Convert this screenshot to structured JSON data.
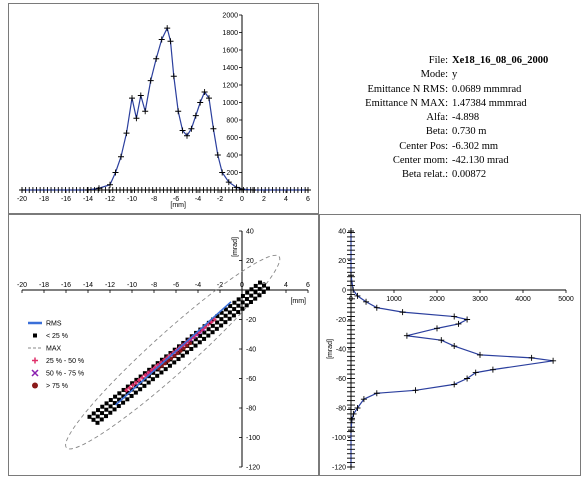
{
  "info": [
    {
      "key": "File:",
      "value": "Xe18_16_08_06_2000"
    },
    {
      "key": "Mode:",
      "value": "y"
    },
    {
      "key": "Emittance N RMS:",
      "value": "0.0689 mmmrad"
    },
    {
      "key": "Emittance N MAX:",
      "value": "1.47384 mmmrad"
    },
    {
      "key": "Alfa:",
      "value": "-4.898"
    },
    {
      "key": "Beta:",
      "value": "0.730 m"
    },
    {
      "key": "Center Pos:",
      "value": "-6.302 mm"
    },
    {
      "key": "Center mom:",
      "value": "-42.130 mrad"
    },
    {
      "key": "Beta relat.:",
      "value": "0.00872"
    }
  ],
  "legend": [
    {
      "label": "RMS",
      "marker": "line",
      "color": "#3a6fd8"
    },
    {
      "label": "< 25 %",
      "marker": "square",
      "color": "#000000"
    },
    {
      "label": "MAX",
      "marker": "dash",
      "color": "#888888"
    },
    {
      "label": "25 % - 50 %",
      "marker": "plus",
      "color": "#e0306a"
    },
    {
      "label": "50 % - 75 %",
      "marker": "x",
      "color": "#8a20b0"
    },
    {
      "label": "> 75 %",
      "marker": "dot",
      "color": "#8b1a1a"
    }
  ],
  "chart_data": [
    {
      "type": "line",
      "xlabel": "[mm]",
      "xlim": [
        -20,
        6
      ],
      "ylim": [
        0,
        2000
      ],
      "x_ticks": [
        -20,
        -18,
        -16,
        -14,
        -12,
        -10,
        -8,
        -6,
        -4,
        -2,
        0,
        2,
        4,
        6
      ],
      "y_ticks": [
        200,
        400,
        600,
        800,
        1000,
        1200,
        1400,
        1600,
        1800,
        2000
      ],
      "series": [
        {
          "color": "#2b3f9e",
          "points": [
            [
              -20,
              0
            ],
            [
              -14,
              0
            ],
            [
              -13,
              20
            ],
            [
              -12,
              60
            ],
            [
              -11.5,
              200
            ],
            [
              -11,
              380
            ],
            [
              -10.5,
              650
            ],
            [
              -10,
              1050
            ],
            [
              -9.6,
              820
            ],
            [
              -9.2,
              1080
            ],
            [
              -8.8,
              900
            ],
            [
              -8.3,
              1250
            ],
            [
              -7.8,
              1500
            ],
            [
              -7.3,
              1720
            ],
            [
              -6.8,
              1850
            ],
            [
              -6.5,
              1700
            ],
            [
              -6.2,
              1300
            ],
            [
              -5.8,
              900
            ],
            [
              -5.4,
              680
            ],
            [
              -5,
              620
            ],
            [
              -4.6,
              700
            ],
            [
              -4.2,
              850
            ],
            [
              -3.8,
              1000
            ],
            [
              -3.4,
              1120
            ],
            [
              -3,
              1050
            ],
            [
              -2.6,
              700
            ],
            [
              -2.2,
              400
            ],
            [
              -1.8,
              200
            ],
            [
              -1.2,
              90
            ],
            [
              -0.5,
              30
            ],
            [
              0,
              10
            ],
            [
              1,
              0
            ],
            [
              6,
              0
            ]
          ]
        }
      ]
    },
    {
      "type": "scatter",
      "xlabel": "[mm]",
      "ylabel": "[mrad]",
      "xlim": [
        -20,
        6
      ],
      "ylim": [
        -120,
        40
      ],
      "x_ticks": [
        -20,
        -18,
        -16,
        -14,
        -12,
        -10,
        -8,
        -6,
        -4,
        -2,
        0,
        2,
        4,
        6
      ],
      "y_ticks": [
        40,
        20,
        0,
        -20,
        -40,
        -60,
        -80,
        -100,
        -120
      ],
      "ellipse_max": {
        "cx": -6.3,
        "cy": -42.1,
        "alpha": -4.898,
        "beta": 0.73,
        "emit_norm": 1.47384
      },
      "ellipse_rms": {
        "cx": -6.3,
        "cy": -42.1,
        "alpha": -4.898,
        "beta": 0.73,
        "emit_norm": 0.0689
      },
      "band": {
        "x_start": -13.5,
        "x_end": 2,
        "y_at_start": -88,
        "y_at_end": 3
      }
    },
    {
      "type": "line",
      "ylabel": "[mrad]",
      "xlim": [
        0,
        5000
      ],
      "ylim": [
        -120,
        40
      ],
      "x_ticks": [
        0,
        1000,
        2000,
        3000,
        4000,
        5000
      ],
      "y_ticks": [
        40,
        20,
        0,
        -20,
        -40,
        -60,
        -80,
        -100,
        -120
      ],
      "series": [
        {
          "color": "#2b3f9e",
          "points": [
            [
              0,
              -120
            ],
            [
              0,
              -95
            ],
            [
              20,
              -88
            ],
            [
              60,
              -84
            ],
            [
              150,
              -80
            ],
            [
              300,
              -74
            ],
            [
              600,
              -70
            ],
            [
              1500,
              -68
            ],
            [
              2400,
              -64
            ],
            [
              2700,
              -60
            ],
            [
              2900,
              -56
            ],
            [
              3300,
              -54
            ],
            [
              4700,
              -48
            ],
            [
              4200,
              -46
            ],
            [
              3000,
              -44
            ],
            [
              2400,
              -38
            ],
            [
              2100,
              -34
            ],
            [
              1300,
              -31
            ],
            [
              2000,
              -26
            ],
            [
              2500,
              -23
            ],
            [
              2700,
              -20
            ],
            [
              2400,
              -18
            ],
            [
              1200,
              -15
            ],
            [
              600,
              -12
            ],
            [
              350,
              -8
            ],
            [
              150,
              -4
            ],
            [
              50,
              0
            ],
            [
              0,
              10
            ],
            [
              0,
              40
            ]
          ]
        }
      ]
    }
  ]
}
